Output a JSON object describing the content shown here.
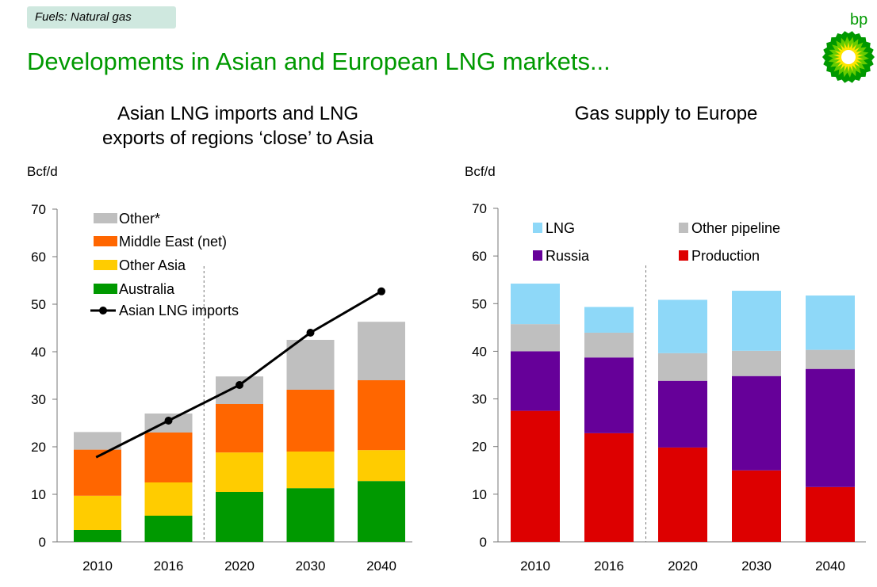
{
  "header": {
    "tag": "Fuels: Natural gas",
    "title": "Developments in Asian and European LNG markets...",
    "logo_text": "bp"
  },
  "colors": {
    "brand_green": "#009900",
    "tag_bg": "#cfe8df",
    "other": "#bfbfbf",
    "middle_east": "#ff6600",
    "other_asia": "#ffcc00",
    "australia": "#009900",
    "lng": "#8ed8f8",
    "russia": "#660099",
    "production": "#dd0000"
  },
  "chart_data": [
    {
      "type": "bar",
      "stacked": true,
      "title_line1": "Asian LNG imports and LNG",
      "title_line2": "exports of regions ‘close’ to Asia",
      "ylabel": "Bcf/d",
      "ylim": [
        0,
        70
      ],
      "yticks": [
        0,
        10,
        20,
        30,
        40,
        50,
        60,
        70
      ],
      "categories": [
        "2010",
        "2016",
        "2020",
        "2030",
        "2040"
      ],
      "series": [
        {
          "name": "Australia",
          "key": "australia",
          "values": [
            2.5,
            5.5,
            10.5,
            11.3,
            12.8
          ]
        },
        {
          "name": "Other Asia",
          "key": "other_asia",
          "values": [
            7.2,
            7.0,
            8.3,
            7.7,
            6.5
          ]
        },
        {
          "name": "Middle East (net)",
          "key": "middle_east",
          "values": [
            9.7,
            10.5,
            10.2,
            13.0,
            14.7
          ]
        },
        {
          "name": "Other*",
          "key": "other",
          "values": [
            3.7,
            4.0,
            5.8,
            10.5,
            12.3
          ]
        }
      ],
      "line": {
        "name": "Asian LNG imports",
        "values": [
          17.8,
          25.5,
          33.0,
          44.0,
          52.7
        ]
      },
      "legend": [
        "Other*",
        "Middle East (net)",
        "Other Asia",
        "Australia",
        "Asian LNG imports"
      ],
      "divider_after": "2016"
    },
    {
      "type": "bar",
      "stacked": true,
      "title_line1": "Gas supply to Europe",
      "ylabel": "Bcf/d",
      "ylim": [
        0,
        70
      ],
      "yticks": [
        0,
        10,
        20,
        30,
        40,
        50,
        60,
        70
      ],
      "categories": [
        "2010",
        "2016",
        "2020",
        "2030",
        "2040"
      ],
      "series": [
        {
          "name": "Production",
          "key": "production",
          "values": [
            27.5,
            22.8,
            19.8,
            15.0,
            11.5
          ]
        },
        {
          "name": "Russia",
          "key": "russia",
          "values": [
            12.5,
            15.9,
            14.0,
            19.8,
            24.8
          ]
        },
        {
          "name": "Other pipeline",
          "key": "other",
          "values": [
            5.7,
            5.2,
            5.8,
            5.3,
            4.0
          ]
        },
        {
          "name": "LNG",
          "key": "lng",
          "values": [
            8.5,
            5.4,
            11.2,
            12.6,
            11.4
          ]
        }
      ],
      "legend": [
        "LNG",
        "Other pipeline",
        "Russia",
        "Production"
      ],
      "divider_after": "2016"
    }
  ]
}
